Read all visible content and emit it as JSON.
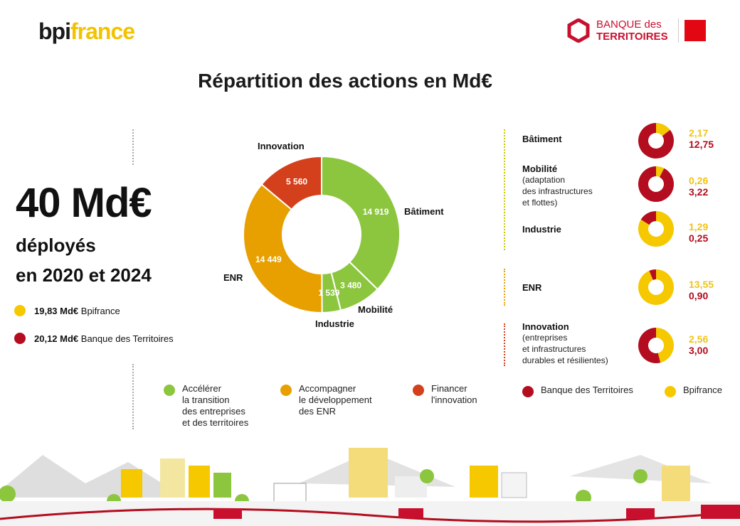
{
  "logos": {
    "bpi_part1": "bpi",
    "bpi_part2": "france",
    "bdt_line1": "BANQUE des",
    "bdt_line2": "TERRITOIRES"
  },
  "title": "Répartition des actions en Md€",
  "summary": {
    "total": "40 Md€",
    "line1": "déployés",
    "line2": "en 2020 et 2024",
    "legend": [
      {
        "amount": "19,83 Md€",
        "label": "Bpifrance",
        "color": "#f5c800"
      },
      {
        "amount": "20,12 Md€",
        "label": "Banque des Territoires",
        "color": "#b30d1f"
      }
    ]
  },
  "colors": {
    "green": "#8cc63f",
    "orange": "#e8a000",
    "red": "#d4401c",
    "bdt_red": "#b30d1f",
    "bpi_yellow": "#f5c800"
  },
  "chart_data": [
    {
      "type": "pie",
      "title": "Répartition des actions en Md€",
      "categories": [
        "Bâtiment",
        "Mobilité",
        "Industrie",
        "ENR",
        "Innovation"
      ],
      "values": [
        14919,
        3480,
        1539,
        14449,
        5560
      ],
      "value_labels": [
        "14 919",
        "3 480",
        "1 539",
        "14 449",
        "5 560"
      ],
      "slice_colors": [
        "#8cc63f",
        "#8cc63f",
        "#8cc63f",
        "#e8a000",
        "#d4401c"
      ],
      "donut": true
    },
    {
      "type": "pie",
      "donut": true,
      "series_names": [
        "Bpifrance",
        "Banque des Territoires"
      ],
      "rows": [
        {
          "label": "Bâtiment",
          "sub": [],
          "bpi": 2.17,
          "bdt": 12.75,
          "bpi_text": "2,17",
          "bdt_text": "12,75"
        },
        {
          "label": "Mobilité",
          "sub": [
            "(adaptation",
            "des infrastructures",
            "et flottes)"
          ],
          "bpi": 0.26,
          "bdt": 3.22,
          "bpi_text": "0,26",
          "bdt_text": "3,22"
        },
        {
          "label": "Industrie",
          "sub": [],
          "bpi": 1.29,
          "bdt": 0.25,
          "bpi_text": "1,29",
          "bdt_text": "0,25"
        },
        {
          "label": "ENR",
          "sub": [],
          "bpi": 13.55,
          "bdt": 0.9,
          "bpi_text": "13,55",
          "bdt_text": "0,90"
        },
        {
          "label": "Innovation",
          "sub": [
            "(entreprises",
            "et infrastructures",
            "durables et résilientes)"
          ],
          "bpi": 2.56,
          "bdt": 3.0,
          "bpi_text": "2,56",
          "bdt_text": "3,00"
        }
      ]
    }
  ],
  "bottom_legend": [
    {
      "lines": [
        "Accélérer",
        "la transition",
        "des entreprises",
        "et des territoires"
      ],
      "color": "#8cc63f"
    },
    {
      "lines": [
        "Accompagner",
        "le développement",
        "des ENR"
      ],
      "color": "#e8a000"
    },
    {
      "lines": [
        "Financer",
        "l'innovation"
      ],
      "color": "#d4401c"
    }
  ],
  "series_legend": [
    {
      "label": "Banque des Territoires",
      "color": "#b30d1f"
    },
    {
      "label": "Bpifrance",
      "color": "#f5c800"
    }
  ]
}
